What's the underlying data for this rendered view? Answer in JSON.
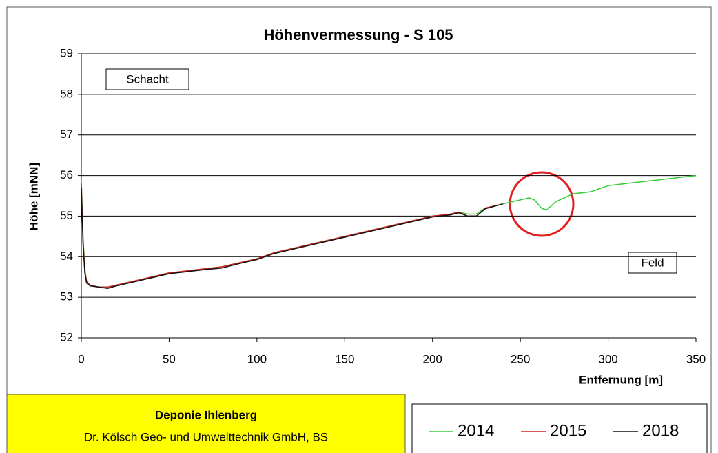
{
  "chart_data": {
    "type": "line",
    "title": "Höhenvermessung -  S 105",
    "x_label": "Entfernung [m]",
    "y_label": "Höhe [mNN]",
    "annotations": [
      "Schacht",
      "Feld"
    ],
    "info": {
      "title": "Deponie Ihlenberg",
      "subtitle": "Dr. Kölsch Geo- und Umwelttechnik GmbH, BS"
    },
    "x": [
      0,
      1,
      2,
      3,
      5,
      10,
      15,
      20,
      30,
      40,
      50,
      60,
      70,
      80,
      90,
      100,
      110,
      120,
      130,
      140,
      150,
      160,
      170,
      180,
      190,
      200,
      210,
      215,
      220,
      225,
      230,
      240,
      250,
      255,
      258,
      262,
      265,
      270,
      275,
      280,
      290,
      300,
      310,
      320,
      330,
      340,
      350
    ],
    "series": [
      {
        "name": "2014",
        "color": "#33cc33",
        "values": [
          55.9,
          54.5,
          53.7,
          53.4,
          53.3,
          53.25,
          53.25,
          53.3,
          53.4,
          53.5,
          53.6,
          53.65,
          53.7,
          53.75,
          53.85,
          53.95,
          54.1,
          54.2,
          54.3,
          54.4,
          54.5,
          54.6,
          54.7,
          54.8,
          54.9,
          55.0,
          55.05,
          55.1,
          55.05,
          55.05,
          55.2,
          55.3,
          55.4,
          55.45,
          55.4,
          55.2,
          55.15,
          55.35,
          55.45,
          55.55,
          55.6,
          55.75,
          55.8,
          55.85,
          55.9,
          55.95,
          56.0
        ]
      },
      {
        "name": "2015",
        "color": "#cc2222",
        "values": [
          55.8,
          54.4,
          53.65,
          53.4,
          53.3,
          53.25,
          53.25,
          53.3,
          53.4,
          53.5,
          53.6,
          53.65,
          53.7,
          53.75,
          53.85,
          53.95,
          54.1,
          54.2,
          54.3,
          54.4,
          54.5,
          54.6,
          54.7,
          54.8,
          54.9,
          55.0,
          55.05,
          55.1,
          55.0,
          55.0,
          55.2,
          55.3,
          null,
          null,
          null,
          null,
          null,
          null,
          null,
          null,
          null,
          null,
          null,
          null,
          null,
          null,
          null
        ]
      },
      {
        "name": "2018",
        "color": "#111111",
        "values": [
          55.7,
          54.3,
          53.6,
          53.35,
          53.28,
          53.25,
          53.22,
          53.28,
          53.38,
          53.48,
          53.58,
          53.63,
          53.68,
          53.72,
          53.83,
          53.93,
          54.08,
          54.18,
          54.28,
          54.38,
          54.48,
          54.58,
          54.68,
          54.78,
          54.88,
          54.98,
          55.03,
          55.08,
          55.0,
          55.0,
          55.18,
          55.3,
          null,
          null,
          null,
          null,
          null,
          null,
          null,
          null,
          null,
          null,
          null,
          null,
          null,
          null,
          null
        ]
      }
    ],
    "xlim": [
      0,
      350
    ],
    "xticks": [
      0,
      50,
      100,
      150,
      200,
      250,
      300,
      350
    ],
    "ylim": [
      52,
      59
    ],
    "yticks": [
      52,
      53,
      54,
      55,
      56,
      57,
      58,
      59
    ],
    "grid": true,
    "legend": "bottom-right"
  }
}
